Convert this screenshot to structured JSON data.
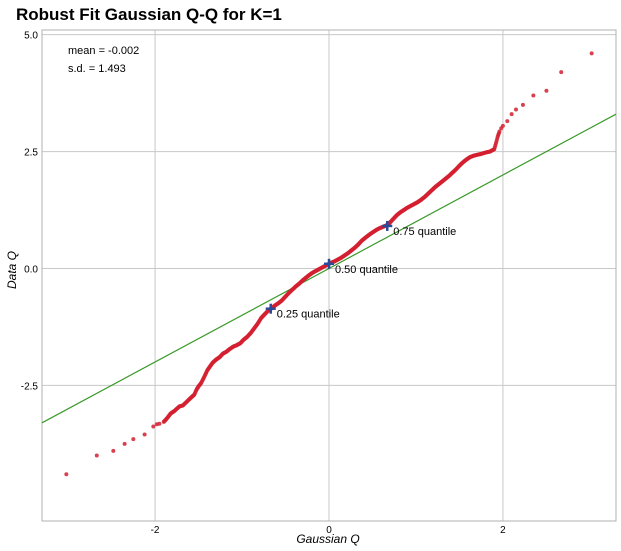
{
  "chart_data": {
    "type": "scatter",
    "title": "Robust Fit Gaussian Q-Q for K=1",
    "xlabel": "Gaussian Q",
    "ylabel": "Data Q",
    "xlim": [
      -3.3,
      3.3
    ],
    "ylim": [
      -5.4,
      5.1
    ],
    "x_ticks": [
      -2,
      0,
      2
    ],
    "x_tick_labels": [
      "-2",
      "0",
      "2"
    ],
    "y_ticks": [
      5.0,
      2.5,
      0.0,
      -2.5
    ],
    "y_tick_labels": [
      "5.0",
      "2.5",
      "0.0",
      "-2.5"
    ],
    "grid": true,
    "stats": {
      "mean_label": "mean = -0.002",
      "sd_label": "s.d. = 1.493"
    },
    "fit_line": {
      "x": [
        -3.3,
        3.3
      ],
      "y": [
        -3.3,
        3.3
      ],
      "color": "#3a9a2a"
    },
    "quantile_markers": [
      {
        "x": -0.67,
        "y": -0.86,
        "label": "0.25 quantile"
      },
      {
        "x": 0.0,
        "y": 0.1,
        "label": "0.50 quantile"
      },
      {
        "x": 0.67,
        "y": 0.91,
        "label": "0.75 quantile"
      }
    ],
    "series": [
      {
        "color": "#d42030",
        "points": [
          [
            -3.02,
            -4.4
          ],
          [
            -2.67,
            -4.0
          ],
          [
            -2.48,
            -3.9
          ],
          [
            -2.35,
            -3.75
          ],
          [
            -2.25,
            -3.65
          ],
          [
            -2.12,
            -3.55
          ],
          [
            -2.02,
            -3.38
          ],
          [
            -1.98,
            -3.33
          ],
          [
            -1.95,
            -3.32
          ],
          [
            -1.9,
            -3.28
          ],
          [
            -1.87,
            -3.22
          ],
          [
            -1.82,
            -3.1
          ],
          [
            -1.78,
            -3.05
          ],
          [
            -1.72,
            -2.95
          ],
          [
            -1.68,
            -2.93
          ],
          [
            -1.62,
            -2.82
          ],
          [
            -1.58,
            -2.75
          ],
          [
            -1.55,
            -2.7
          ],
          [
            -1.52,
            -2.58
          ],
          [
            -1.5,
            -2.52
          ],
          [
            -1.47,
            -2.45
          ],
          [
            -1.43,
            -2.3
          ],
          [
            -1.4,
            -2.18
          ],
          [
            -1.37,
            -2.1
          ],
          [
            -1.34,
            -2.02
          ],
          [
            -1.3,
            -1.95
          ],
          [
            -1.26,
            -1.9
          ],
          [
            -1.22,
            -1.82
          ],
          [
            -1.18,
            -1.78
          ],
          [
            -1.14,
            -1.72
          ],
          [
            -1.1,
            -1.67
          ],
          [
            -1.06,
            -1.64
          ],
          [
            -1.02,
            -1.6
          ],
          [
            -0.98,
            -1.52
          ],
          [
            -0.94,
            -1.46
          ],
          [
            -0.9,
            -1.38
          ],
          [
            -0.86,
            -1.28
          ],
          [
            -0.82,
            -1.18
          ],
          [
            -0.78,
            -1.06
          ],
          [
            -0.74,
            -0.98
          ],
          [
            -0.7,
            -0.9
          ],
          [
            -0.66,
            -0.85
          ],
          [
            -0.62,
            -0.79
          ],
          [
            -0.58,
            -0.74
          ],
          [
            -0.54,
            -0.68
          ],
          [
            -0.5,
            -0.6
          ],
          [
            -0.46,
            -0.52
          ],
          [
            -0.42,
            -0.45
          ],
          [
            -0.38,
            -0.38
          ],
          [
            -0.34,
            -0.32
          ],
          [
            -0.3,
            -0.25
          ],
          [
            -0.26,
            -0.19
          ],
          [
            -0.22,
            -0.13
          ],
          [
            -0.18,
            -0.08
          ],
          [
            -0.14,
            -0.04
          ],
          [
            -0.1,
            0.0
          ],
          [
            -0.06,
            0.04
          ],
          [
            -0.02,
            0.08
          ],
          [
            0.02,
            0.12
          ],
          [
            0.06,
            0.15
          ],
          [
            0.1,
            0.19
          ],
          [
            0.14,
            0.23
          ],
          [
            0.18,
            0.28
          ],
          [
            0.22,
            0.33
          ],
          [
            0.26,
            0.39
          ],
          [
            0.3,
            0.45
          ],
          [
            0.34,
            0.52
          ],
          [
            0.38,
            0.6
          ],
          [
            0.42,
            0.66
          ],
          [
            0.46,
            0.72
          ],
          [
            0.5,
            0.77
          ],
          [
            0.54,
            0.82
          ],
          [
            0.58,
            0.86
          ],
          [
            0.62,
            0.89
          ],
          [
            0.66,
            0.92
          ],
          [
            0.7,
            0.98
          ],
          [
            0.74,
            1.06
          ],
          [
            0.78,
            1.14
          ],
          [
            0.82,
            1.2
          ],
          [
            0.86,
            1.25
          ],
          [
            0.9,
            1.3
          ],
          [
            0.94,
            1.34
          ],
          [
            0.98,
            1.38
          ],
          [
            1.02,
            1.42
          ],
          [
            1.06,
            1.47
          ],
          [
            1.1,
            1.53
          ],
          [
            1.14,
            1.6
          ],
          [
            1.18,
            1.67
          ],
          [
            1.22,
            1.74
          ],
          [
            1.26,
            1.8
          ],
          [
            1.3,
            1.86
          ],
          [
            1.34,
            1.92
          ],
          [
            1.38,
            1.98
          ],
          [
            1.42,
            2.05
          ],
          [
            1.46,
            2.12
          ],
          [
            1.5,
            2.2
          ],
          [
            1.54,
            2.27
          ],
          [
            1.58,
            2.33
          ],
          [
            1.62,
            2.38
          ],
          [
            1.66,
            2.41
          ],
          [
            1.7,
            2.43
          ],
          [
            1.75,
            2.45
          ],
          [
            1.8,
            2.48
          ],
          [
            1.85,
            2.5
          ],
          [
            1.9,
            2.55
          ],
          [
            1.92,
            2.68
          ],
          [
            1.94,
            2.82
          ],
          [
            1.96,
            2.93
          ],
          [
            1.98,
            3.0
          ],
          [
            2.0,
            3.05
          ],
          [
            2.05,
            3.15
          ],
          [
            2.1,
            3.3
          ],
          [
            2.15,
            3.4
          ],
          [
            2.23,
            3.5
          ],
          [
            2.35,
            3.7
          ],
          [
            2.5,
            3.8
          ],
          [
            2.67,
            4.2
          ],
          [
            3.02,
            4.6
          ]
        ]
      }
    ]
  }
}
